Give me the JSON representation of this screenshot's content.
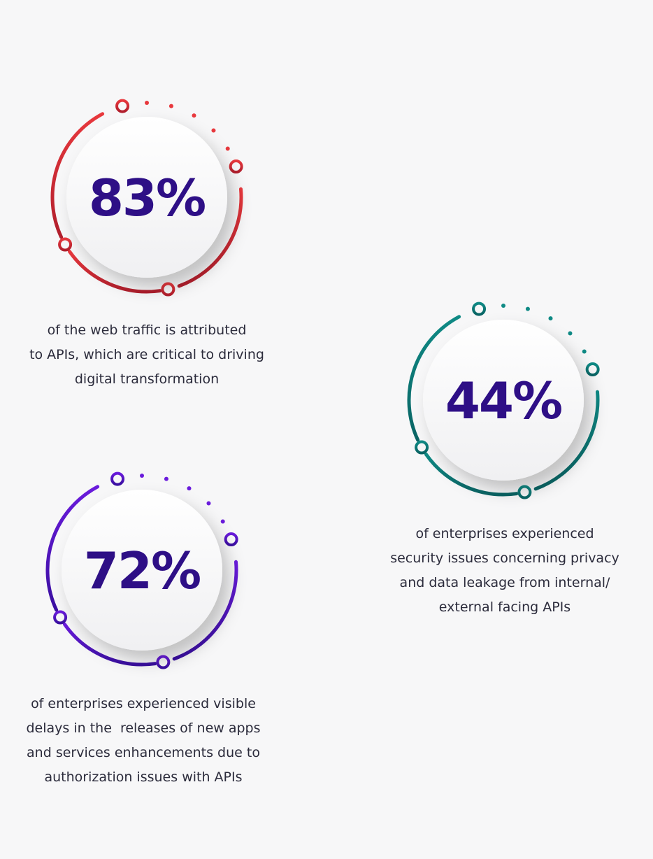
{
  "stats": [
    {
      "value": "83%",
      "caption": [
        "of the web traffic is attributed",
        "to APIs, which are critical to driving",
        "digital transformation"
      ]
    },
    {
      "value": "44%",
      "caption": [
        "of enterprises experienced",
        "security issues concerning privacy",
        "and data leakage from internal/",
        "external facing APIs"
      ]
    },
    {
      "value": "72%",
      "caption": [
        "of enterprises experienced visible",
        "delays in the  releases of new apps",
        "and services enhancements due to",
        "authorization issues with APIs"
      ]
    }
  ]
}
